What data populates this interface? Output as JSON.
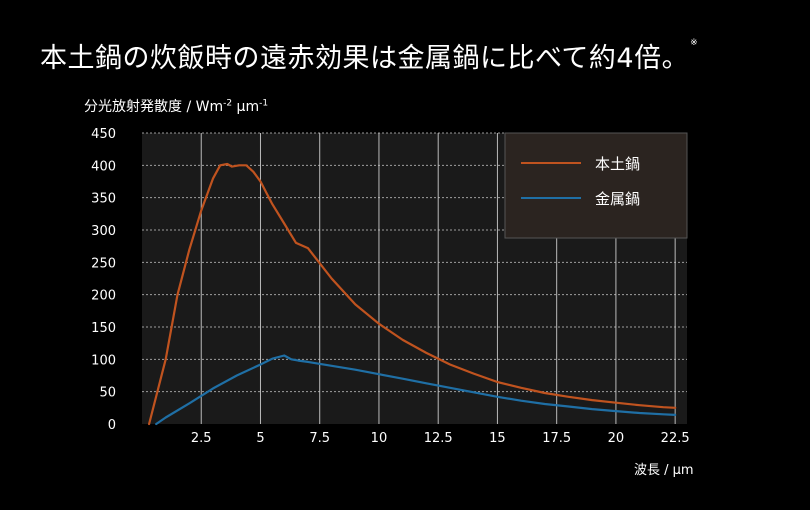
{
  "header": {
    "title": "本土鍋の炊飯時の遠赤効果は金属鍋に比べて約4倍。",
    "note_mark": "※"
  },
  "chart_data": {
    "type": "line",
    "ylabel_main": "分光放射発散度 / Wm",
    "ylabel_exp1": "-2",
    "ylabel_unit2": " μm",
    "ylabel_exp2": "-1",
    "xlabel": "波長 / μm",
    "xlim": [
      0,
      23
    ],
    "ylim": [
      0,
      450
    ],
    "x_ticks": [
      "2.5",
      "5",
      "7.5",
      "10",
      "12.5",
      "15",
      "17.5",
      "20",
      "22.5"
    ],
    "y_ticks": [
      "0",
      "50",
      "100",
      "150",
      "200",
      "250",
      "300",
      "350",
      "400",
      "450"
    ],
    "grid": true,
    "legend_position": "top-right",
    "colors": {
      "background": "#1a1a1a",
      "grid": "#cccccc",
      "legend_bg": "#2b2420"
    },
    "series": [
      {
        "name": "本土鍋",
        "color": "#c0531f",
        "x": [
          0.3,
          1.0,
          1.5,
          2.0,
          2.5,
          3.0,
          3.3,
          3.6,
          3.8,
          4.1,
          4.4,
          4.7,
          5.0,
          5.5,
          6.0,
          6.5,
          7.0,
          7.3,
          8.0,
          9.0,
          10.0,
          11.0,
          12.0,
          13.0,
          14.0,
          15.0,
          16.0,
          17.0,
          18.0,
          19.0,
          20.0,
          21.0,
          22.0,
          22.5
        ],
        "y": [
          0,
          100,
          200,
          270,
          330,
          380,
          400,
          402,
          398,
          400,
          400,
          390,
          375,
          340,
          310,
          280,
          272,
          258,
          225,
          185,
          155,
          130,
          110,
          92,
          78,
          65,
          56,
          48,
          42,
          37,
          33,
          29,
          26,
          25
        ]
      },
      {
        "name": "金属鍋",
        "color": "#1f6fa5",
        "x": [
          0.6,
          1.0,
          2.0,
          3.0,
          4.0,
          5.0,
          5.5,
          6.0,
          6.3,
          6.6,
          7.0,
          8.0,
          9.0,
          10.0,
          11.0,
          12.0,
          13.0,
          14.0,
          15.0,
          16.0,
          17.0,
          18.0,
          19.0,
          20.0,
          21.0,
          22.0,
          22.5
        ],
        "y": [
          0,
          10,
          32,
          55,
          75,
          92,
          101,
          106,
          100,
          98,
          96,
          90,
          84,
          77,
          70,
          63,
          56,
          49,
          42,
          36,
          31,
          27,
          23,
          20,
          17,
          15,
          14
        ]
      }
    ]
  }
}
